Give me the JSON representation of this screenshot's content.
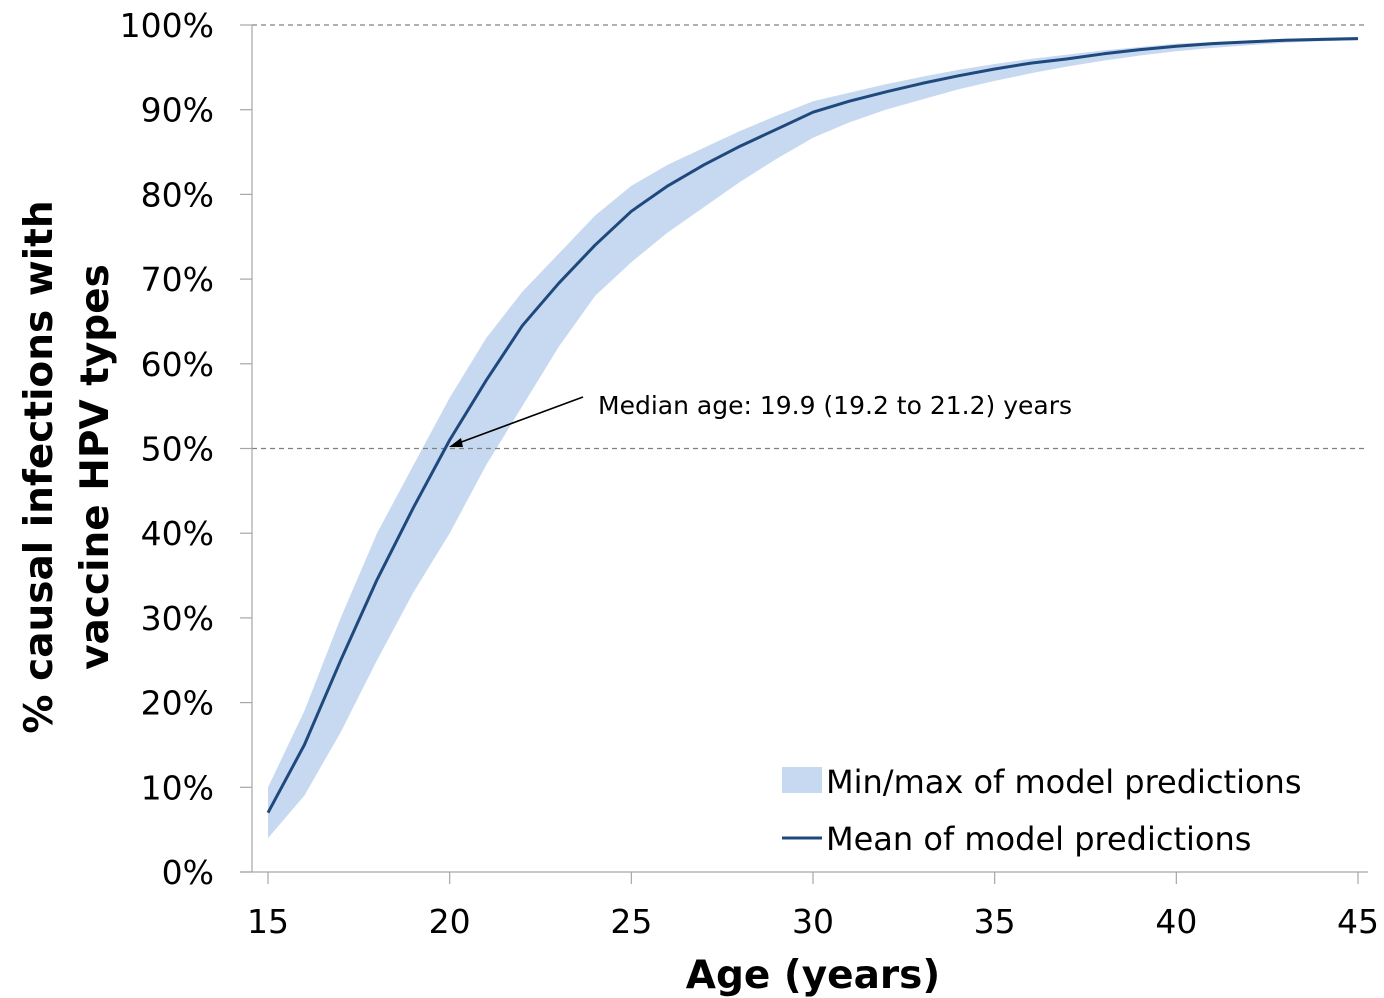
{
  "chart_data": {
    "type": "line",
    "xlabel": "Age (years)",
    "ylabel_lines": [
      "% causal infections with",
      "vaccine HPV types"
    ],
    "xlim": [
      15,
      45
    ],
    "ylim": [
      0,
      1
    ],
    "x_ticks": [
      "15",
      "20",
      "25",
      "30",
      "35",
      "40",
      "45"
    ],
    "y_ticks": [
      "0%",
      "10%",
      "20%",
      "30%",
      "40%",
      "50%",
      "60%",
      "70%",
      "80%",
      "90%",
      "100%"
    ],
    "reference_lines_y": [
      0.5,
      1.0
    ],
    "annotation": {
      "text": "Median age: 19.9 (19.2 to 21.2) years",
      "x": 19.9,
      "y": 0.5
    },
    "series": [
      {
        "name": "Mean of model predictions",
        "color": "#1f497d",
        "x": [
          15,
          16,
          17,
          18,
          19,
          20,
          21,
          22,
          23,
          24,
          25,
          26,
          27,
          28,
          29,
          30,
          31,
          32,
          33,
          34,
          35,
          36,
          37,
          38,
          39,
          40,
          41,
          42,
          43,
          44,
          45
        ],
        "values": [
          0.07,
          0.15,
          0.25,
          0.345,
          0.43,
          0.51,
          0.58,
          0.645,
          0.695,
          0.74,
          0.78,
          0.81,
          0.835,
          0.857,
          0.877,
          0.897,
          0.91,
          0.921,
          0.931,
          0.94,
          0.948,
          0.955,
          0.96,
          0.966,
          0.971,
          0.975,
          0.978,
          0.98,
          0.982,
          0.983,
          0.984
        ]
      }
    ],
    "band": {
      "name": "Min/max of model predictions",
      "color": "#c6d9f1",
      "x": [
        15,
        16,
        17,
        18,
        19,
        20,
        21,
        22,
        23,
        24,
        25,
        26,
        27,
        28,
        29,
        30,
        31,
        32,
        33,
        34,
        35,
        36,
        37,
        38,
        39,
        40,
        41,
        42,
        43,
        44,
        45
      ],
      "upper": [
        0.1,
        0.19,
        0.3,
        0.4,
        0.48,
        0.56,
        0.63,
        0.685,
        0.73,
        0.775,
        0.81,
        0.835,
        0.855,
        0.875,
        0.893,
        0.91,
        0.92,
        0.93,
        0.939,
        0.947,
        0.954,
        0.96,
        0.965,
        0.97,
        0.974,
        0.978,
        0.98,
        0.982,
        0.984,
        0.985,
        0.986
      ],
      "lower": [
        0.04,
        0.09,
        0.165,
        0.25,
        0.33,
        0.4,
        0.48,
        0.55,
        0.62,
        0.68,
        0.72,
        0.755,
        0.785,
        0.815,
        0.842,
        0.867,
        0.885,
        0.9,
        0.912,
        0.924,
        0.934,
        0.943,
        0.951,
        0.958,
        0.964,
        0.969,
        0.973,
        0.976,
        0.979,
        0.981,
        0.982
      ]
    },
    "legend": {
      "position": "bottom-right",
      "items": [
        "Min/max of model predictions",
        "Mean of model predictions"
      ]
    },
    "grid": false
  }
}
